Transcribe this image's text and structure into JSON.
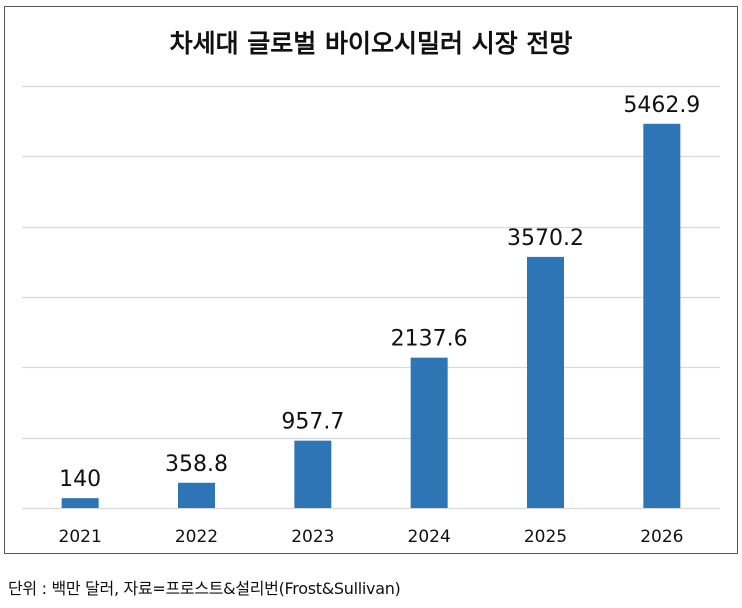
{
  "chart_data": {
    "type": "bar",
    "title": "차세대 글로벌 바이오시밀러 시장 전망",
    "xlabel": "",
    "ylabel": "",
    "categories": [
      "2021",
      "2022",
      "2023",
      "2024",
      "2025",
      "2026"
    ],
    "values": [
      140,
      358.8,
      957.7,
      2137.6,
      3570.2,
      5462.9
    ],
    "data_labels": [
      "140",
      "358.8",
      "957.7",
      "2137.6",
      "3570.2",
      "5462.9"
    ],
    "ylim": [
      0,
      6000
    ],
    "ytick_step": 1000,
    "y_axis_visible": false,
    "grid": true,
    "legend": "none",
    "bar_color": "#2E75B6",
    "grid_color": "#D9D9D9"
  },
  "note": "단위 : 백만 달러, 자료=프로스트&설리번(Frost&Sullivan)"
}
